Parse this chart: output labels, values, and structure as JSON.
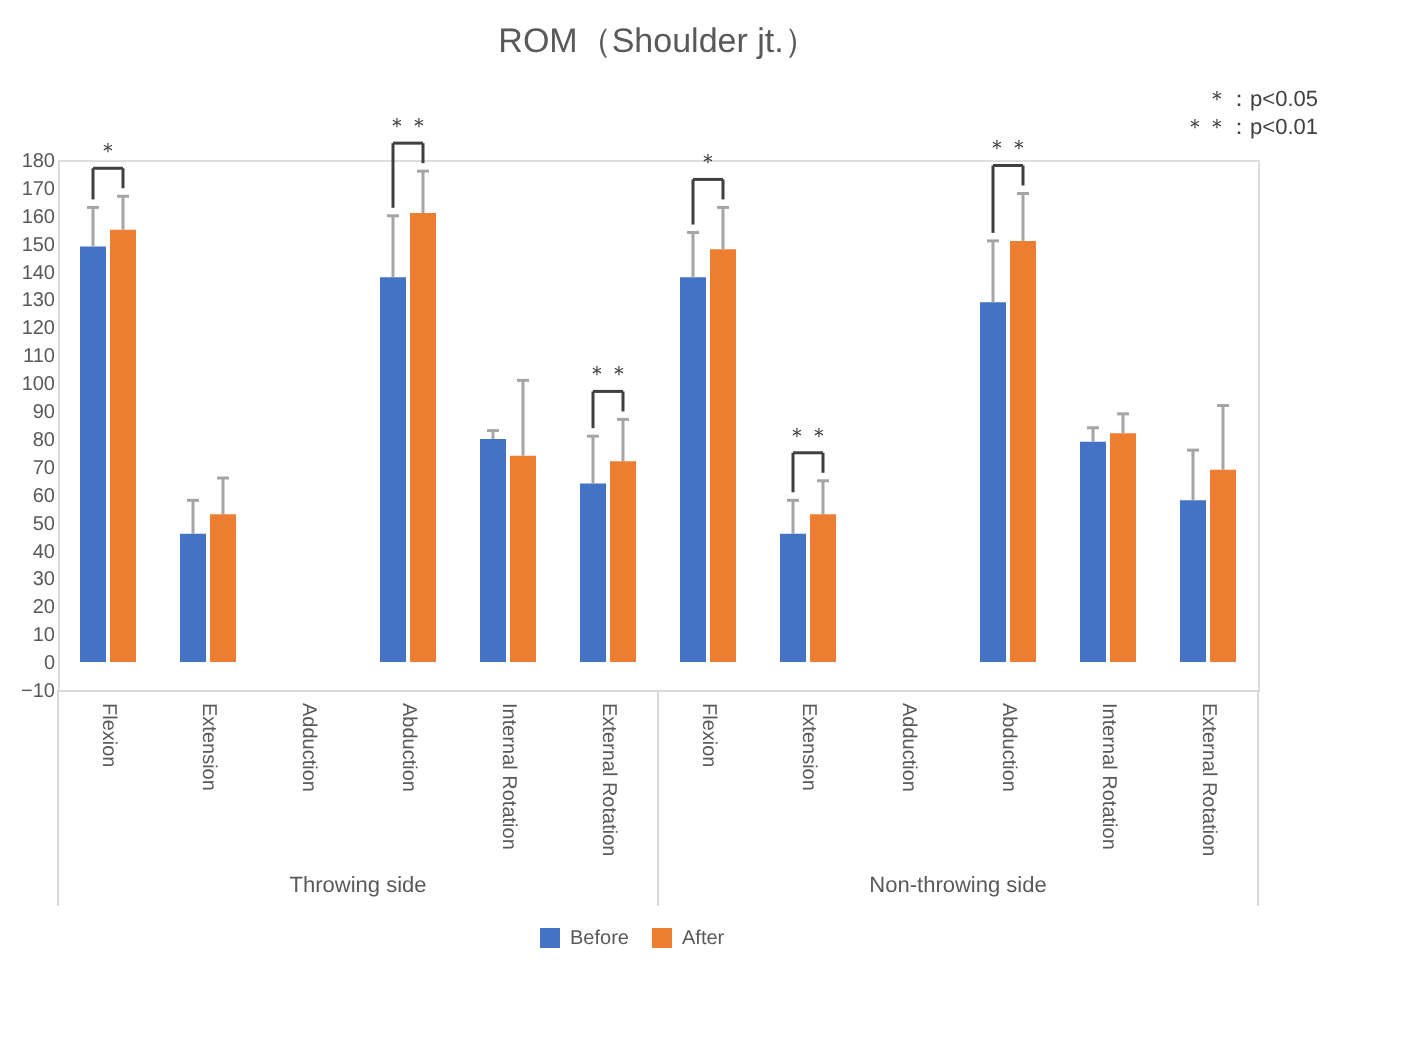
{
  "chart_data": {
    "type": "bar",
    "title": "ROM（Shoulder jt.）",
    "categories": [
      "Flexion",
      "Extension",
      "Adduction",
      "Abduction",
      "Internal Rotation",
      "External Rotation",
      "Flexion",
      "Extension",
      "Adduction",
      "Abduction",
      "Internal Rotation",
      "External Rotation"
    ],
    "series": [
      {
        "name": "Before",
        "color": "#4472c4",
        "values": [
          149,
          46,
          0,
          138,
          80,
          64,
          138,
          46,
          0,
          129,
          79,
          58
        ],
        "errors": [
          [
            149,
            163
          ],
          [
            46,
            58
          ],
          null,
          [
            138,
            160
          ],
          [
            80,
            83
          ],
          [
            64,
            81
          ],
          [
            138,
            154
          ],
          [
            46,
            58
          ],
          null,
          [
            129,
            151
          ],
          [
            79,
            84
          ],
          [
            58,
            76
          ]
        ]
      },
      {
        "name": "After",
        "color": "#ed7d31",
        "values": [
          155,
          53,
          0,
          161,
          74,
          72,
          148,
          53,
          0,
          151,
          82,
          69
        ],
        "errors": [
          [
            155,
            167
          ],
          [
            53,
            66
          ],
          null,
          [
            161,
            176
          ],
          [
            74,
            101
          ],
          [
            72,
            87
          ],
          [
            148,
            163
          ],
          [
            53,
            65
          ],
          null,
          [
            151,
            168
          ],
          [
            82,
            89
          ],
          [
            69,
            92
          ]
        ]
      }
    ],
    "ylim": [
      -10,
      180
    ],
    "yticks": [
      -10,
      0,
      10,
      20,
      30,
      40,
      50,
      60,
      70,
      80,
      90,
      100,
      110,
      120,
      130,
      140,
      150,
      160,
      170,
      180
    ],
    "grid": false,
    "legend": "bottom",
    "annotations": [
      "＊：p<0.05",
      "＊＊：p<0.01",
      "Throwing side",
      "Non-throwing side",
      {
        "text": "＊",
        "x": "Flexion",
        "y": 167
      },
      {
        "text": "＊＊",
        "x": "Abduction",
        "y": 176
      },
      {
        "text": "＊＊",
        "x": "External Rotation",
        "y": 87
      },
      {
        "text": "＊",
        "y": 163
      },
      {
        "text": "＊＊",
        "y": 65
      },
      {
        "text": "＊＊",
        "y": 168
      }
    ]
  }
}
